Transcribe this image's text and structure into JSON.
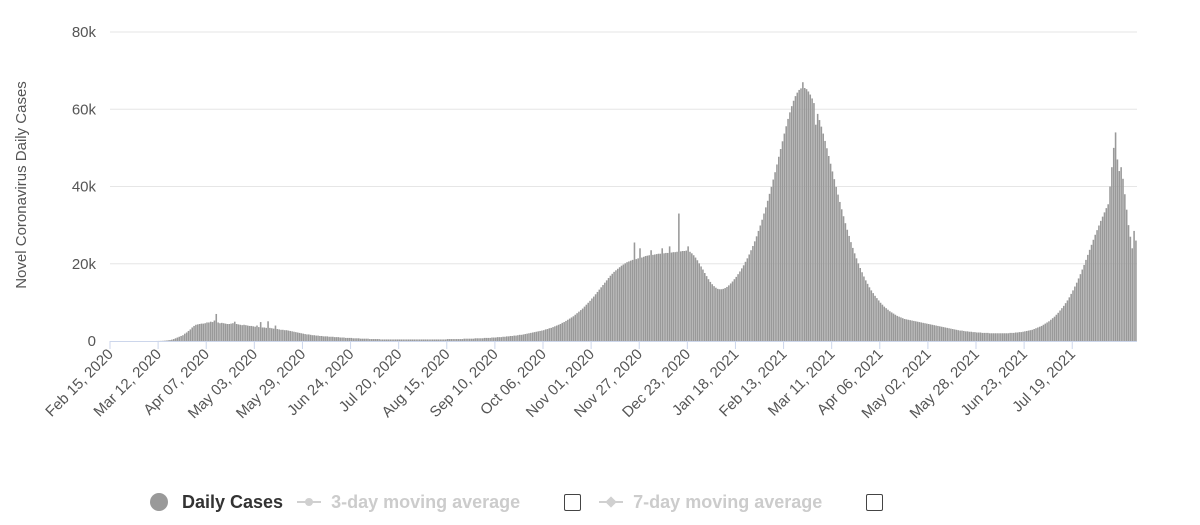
{
  "chart_data": {
    "type": "bar",
    "ylabel": "Novel Coronavirus Daily Cases",
    "xlabel": "",
    "ylim": [
      0,
      80000
    ],
    "y_ticks": [
      0,
      20000,
      40000,
      60000,
      80000
    ],
    "y_tick_labels": [
      "0",
      "20k",
      "40k",
      "60k",
      "80k"
    ],
    "x_start_date": "Feb 15, 2020",
    "x_tick_labels": [
      "Feb 15, 2020",
      "Mar 12, 2020",
      "Apr 07, 2020",
      "May 03, 2020",
      "May 29, 2020",
      "Jun 24, 2020",
      "Jul 20, 2020",
      "Aug 15, 2020",
      "Sep 10, 2020",
      "Oct 06, 2020",
      "Nov 01, 2020",
      "Nov 27, 2020",
      "Dec 23, 2020",
      "Jan 18, 2021",
      "Feb 13, 2021",
      "Mar 11, 2021",
      "Apr 06, 2021",
      "May 02, 2021",
      "May 28, 2021",
      "Jun 23, 2021",
      "Jul 19, 2021"
    ],
    "grid": true,
    "legend_position": "bottom-left",
    "bar_color": "#999999",
    "series": [
      {
        "name": "Daily Cases",
        "values": [
          0,
          0,
          0,
          0,
          0,
          0,
          0,
          0,
          0,
          0,
          0,
          0,
          0,
          0,
          0,
          0,
          0,
          0,
          0,
          0,
          0,
          0,
          0,
          0,
          0,
          10,
          20,
          30,
          50,
          80,
          120,
          180,
          250,
          350,
          500,
          700,
          900,
          1100,
          1300,
          1500,
          1900,
          2200,
          2600,
          3000,
          3500,
          3900,
          4200,
          4300,
          4400,
          4500,
          4500,
          4600,
          4800,
          4800,
          5000,
          4900,
          5300,
          7000,
          4800,
          4600,
          4700,
          4600,
          4500,
          4400,
          4400,
          4500,
          4600,
          5000,
          4400,
          4300,
          4200,
          4100,
          4200,
          4100,
          4000,
          3900,
          3900,
          3800,
          3700,
          4000,
          3600,
          4900,
          3500,
          3500,
          3400,
          5100,
          3400,
          3300,
          3200,
          4000,
          3100,
          3000,
          2900,
          2900,
          2800,
          2800,
          2700,
          2600,
          2500,
          2400,
          2300,
          2200,
          2100,
          2000,
          1900,
          1800,
          1700,
          1700,
          1600,
          1500,
          1500,
          1400,
          1400,
          1300,
          1300,
          1200,
          1200,
          1200,
          1100,
          1100,
          1100,
          1000,
          1000,
          1000,
          900,
          900,
          900,
          800,
          800,
          800,
          800,
          700,
          700,
          700,
          700,
          600,
          600,
          600,
          600,
          600,
          500,
          500,
          500,
          500,
          500,
          500,
          400,
          400,
          400,
          400,
          400,
          400,
          400,
          400,
          400,
          400,
          400,
          400,
          400,
          400,
          400,
          400,
          400,
          400,
          400,
          400,
          400,
          400,
          400,
          400,
          400,
          400,
          400,
          400,
          400,
          400,
          400,
          400,
          400,
          400,
          400,
          400,
          500,
          500,
          500,
          500,
          500,
          500,
          500,
          500,
          500,
          600,
          600,
          600,
          600,
          600,
          600,
          700,
          700,
          700,
          700,
          700,
          800,
          800,
          800,
          800,
          900,
          900,
          900,
          1000,
          1000,
          1000,
          1100,
          1100,
          1200,
          1200,
          1300,
          1300,
          1400,
          1400,
          1500,
          1600,
          1600,
          1700,
          1800,
          1900,
          2000,
          2100,
          2200,
          2300,
          2400,
          2500,
          2600,
          2700,
          2800,
          3000,
          3100,
          3300,
          3400,
          3600,
          3800,
          4000,
          4200,
          4400,
          4700,
          4900,
          5200,
          5500,
          5800,
          6100,
          6400,
          6800,
          7200,
          7600,
          8000,
          8400,
          8900,
          9400,
          9900,
          10400,
          11000,
          11500,
          12100,
          12700,
          13300,
          13900,
          14500,
          15100,
          15700,
          16300,
          16900,
          17400,
          17900,
          18300,
          18700,
          19100,
          19500,
          19800,
          20100,
          20400,
          20600,
          20800,
          21000,
          25500,
          21200,
          21400,
          24000,
          21600,
          21800,
          22000,
          22100,
          22200,
          23500,
          22300,
          22400,
          22500,
          22600,
          22600,
          24000,
          22700,
          22800,
          22800,
          24500,
          22900,
          23000,
          23000,
          23100,
          33000,
          23200,
          23300,
          23300,
          23400,
          24500,
          23100,
          22700,
          22200,
          21600,
          20900,
          20100,
          19300,
          18500,
          17600,
          16800,
          16000,
          15300,
          14700,
          14200,
          13800,
          13500,
          13400,
          13400,
          13500,
          13700,
          14000,
          14400,
          14900,
          15400,
          16000,
          16600,
          17300,
          18000,
          18800,
          19600,
          20500,
          21400,
          22400,
          23500,
          24600,
          25800,
          27100,
          28500,
          29900,
          31400,
          33000,
          34600,
          36300,
          38100,
          39900,
          41800,
          43700,
          45700,
          47700,
          49700,
          51700,
          53700,
          55600,
          57500,
          59200,
          60800,
          62200,
          63400,
          64300,
          65000,
          65400,
          67000,
          65500,
          65200,
          64600,
          63800,
          62800,
          61600,
          56000,
          58800,
          57200,
          55500,
          53700,
          51800,
          49900,
          47900,
          45900,
          43900,
          41900,
          39900,
          37900,
          36000,
          34100,
          32300,
          30500,
          28800,
          27200,
          25600,
          24100,
          22700,
          21400,
          20100,
          18900,
          17800,
          16700,
          15700,
          14800,
          13900,
          13100,
          12400,
          11700,
          11100,
          10500,
          9900,
          9400,
          8900,
          8500,
          8100,
          7700,
          7400,
          7100,
          6800,
          6500,
          6300,
          6100,
          5900,
          5700,
          5600,
          5500,
          5400,
          5300,
          5200,
          5100,
          5000,
          4900,
          4800,
          4700,
          4600,
          4500,
          4400,
          4300,
          4200,
          4100,
          4000,
          3900,
          3800,
          3700,
          3600,
          3500,
          3400,
          3300,
          3200,
          3100,
          3000,
          2900,
          2800,
          2700,
          2700,
          2600,
          2500,
          2500,
          2400,
          2400,
          2300,
          2300,
          2200,
          2200,
          2200,
          2100,
          2100,
          2100,
          2100,
          2000,
          2000,
          2000,
          2000,
          2000,
          2000,
          2000,
          2000,
          2000,
          2000,
          2000,
          2100,
          2100,
          2100,
          2200,
          2200,
          2300,
          2300,
          2400,
          2500,
          2600,
          2700,
          2800,
          2900,
          3100,
          3300,
          3500,
          3700,
          3900,
          4200,
          4500,
          4800,
          5100,
          5500,
          5900,
          6300,
          6800,
          7300,
          7900,
          8500,
          9100,
          9800,
          10500,
          11300,
          12200,
          13100,
          14100,
          15100,
          16200,
          17300,
          18500,
          19700,
          21000,
          22300,
          23600,
          24900,
          26200,
          27500,
          28700,
          29900,
          31100,
          32200,
          33300,
          34400,
          35400,
          40000,
          45000,
          50000,
          54000,
          47000,
          44000,
          45000,
          42000,
          38000,
          34000,
          30000,
          27000,
          24000,
          28500,
          26000
        ]
      },
      {
        "name": "3-day moving average",
        "values": []
      },
      {
        "name": "7-day moving average",
        "values": []
      }
    ]
  },
  "legend": {
    "items": [
      {
        "label": "Daily Cases",
        "active": true
      },
      {
        "label": "3-day moving average",
        "active": false
      },
      {
        "label": "7-day moving average",
        "active": false
      }
    ]
  }
}
